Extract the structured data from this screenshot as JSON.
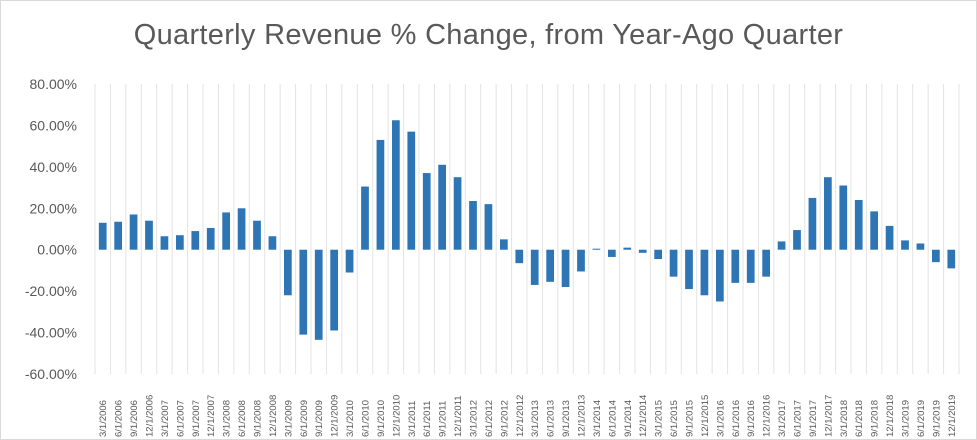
{
  "chart_data": {
    "type": "bar",
    "title": "Quarterly Revenue % Change, from Year-Ago Quarter",
    "xlabel": "",
    "ylabel": "",
    "ylim": [
      -60,
      80
    ],
    "y_ticks": [
      80,
      60,
      40,
      20,
      0,
      -20,
      -40,
      -60
    ],
    "y_tick_labels": [
      "80.00%",
      "60.00%",
      "40.00%",
      "20.00%",
      "0.00%",
      "-20.00%",
      "-40.00%",
      "-60.00%"
    ],
    "grid": "vertical",
    "legend": "none",
    "bar_color": "#2e75b6",
    "categories": [
      "3/1/2006",
      "6/1/2006",
      "9/1/2006",
      "12/1/2006",
      "3/1/2007",
      "6/1/2007",
      "9/1/2007",
      "12/1/2007",
      "3/1/2008",
      "6/1/2008",
      "9/1/2008",
      "12/1/2008",
      "3/1/2009",
      "6/1/2009",
      "9/1/2009",
      "12/1/2009",
      "3/1/2010",
      "6/1/2010",
      "9/1/2010",
      "12/1/2010",
      "3/1/2011",
      "6/1/2011",
      "9/1/2011",
      "12/1/2011",
      "3/1/2012",
      "6/1/2012",
      "9/1/2012",
      "12/1/2012",
      "3/1/2013",
      "6/1/2013",
      "9/1/2013",
      "12/1/2013",
      "3/1/2014",
      "6/1/2014",
      "9/1/2014",
      "12/1/2014",
      "3/1/2015",
      "6/1/2015",
      "9/1/2015",
      "12/1/2015",
      "3/1/2016",
      "6/1/2016",
      "9/1/2016",
      "12/1/2016",
      "3/1/2017",
      "6/1/2017",
      "9/1/2017",
      "12/1/2017",
      "3/1/2018",
      "6/1/2018",
      "9/1/2018",
      "12/1/2018",
      "3/1/2019",
      "6/1/2019",
      "9/1/2019",
      "12/1/2019"
    ],
    "values": [
      13,
      13.5,
      17,
      14,
      6.5,
      7,
      9,
      10.5,
      18,
      20,
      14,
      6.5,
      -22,
      -41,
      -43.5,
      -39,
      -11,
      30.5,
      53,
      62.5,
      57,
      37,
      41,
      35,
      23.5,
      22,
      5,
      -6.5,
      -17,
      -15.5,
      -18,
      -10.5,
      0.5,
      -3.5,
      1,
      -1.5,
      -4.5,
      -13,
      -19,
      -22,
      -25,
      -16,
      -16,
      -13,
      4,
      9.5,
      25,
      35,
      31,
      24,
      18.5,
      11.5,
      4.5,
      3,
      -6,
      -9
    ]
  }
}
